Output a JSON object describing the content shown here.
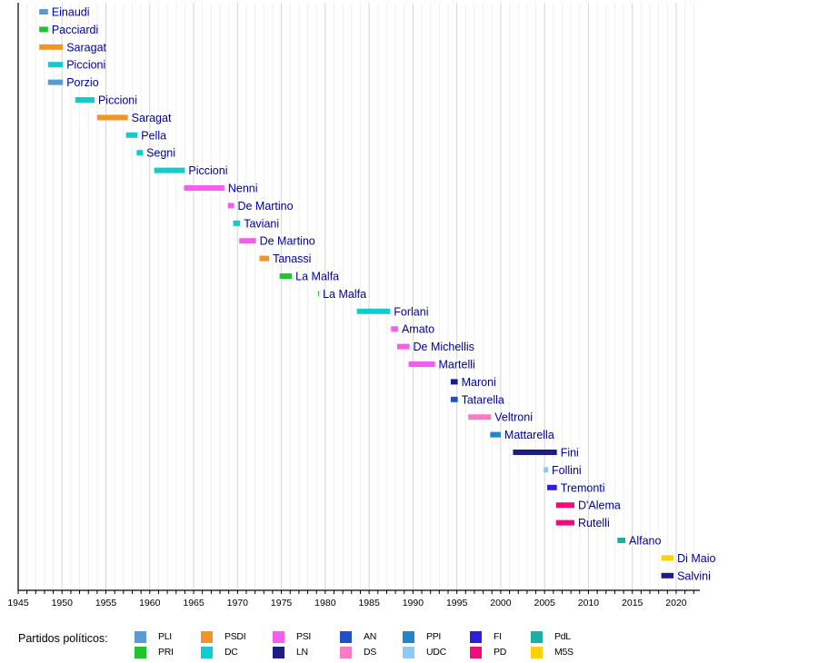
{
  "chart_data": {
    "type": "timeline-bar",
    "title": "",
    "xlabel": "",
    "ylabel": "",
    "xlim": [
      1945,
      2022.7
    ],
    "x_ticks": [
      1945,
      1950,
      1955,
      1960,
      1965,
      1970,
      1975,
      1980,
      1985,
      1990,
      1995,
      2000,
      2005,
      2010,
      2015,
      2020
    ],
    "grid": "vertical, major every 5 years, minor every year",
    "legend_title": "Partidos políticos:",
    "legend_position": "bottom",
    "parties": [
      {
        "key": "PLI",
        "color": "#5a9bd3"
      },
      {
        "key": "PRI",
        "color": "#22c42e"
      },
      {
        "key": "PSDI",
        "color": "#f19624"
      },
      {
        "key": "DC",
        "color": "#10cccc"
      },
      {
        "key": "PSI",
        "color": "#f65cf0"
      },
      {
        "key": "LN",
        "color": "#1c1c86"
      },
      {
        "key": "AN",
        "color": "#2050c4"
      },
      {
        "key": "DS",
        "color": "#f77cc2"
      },
      {
        "key": "PPI",
        "color": "#1f86cc"
      },
      {
        "key": "UDC",
        "color": "#8ecaf4"
      },
      {
        "key": "FI",
        "color": "#2e1fdc"
      },
      {
        "key": "PD",
        "color": "#f20c78"
      },
      {
        "key": "PdL",
        "color": "#1cb0a4"
      },
      {
        "key": "M5S",
        "color": "#f9d20c"
      }
    ],
    "entries": [
      {
        "name": "Einaudi",
        "party": "PLI",
        "start": 1947.4,
        "end": 1948.4
      },
      {
        "name": "Pacciardi",
        "party": "PRI",
        "start": 1947.4,
        "end": 1948.4
      },
      {
        "name": "Saragat",
        "party": "PSDI",
        "start": 1947.4,
        "end": 1950.1
      },
      {
        "name": "Piccioni",
        "party": "DC",
        "start": 1948.4,
        "end": 1950.1
      },
      {
        "name": "Porzio",
        "party": "PLI",
        "start": 1948.4,
        "end": 1950.1
      },
      {
        "name": "Piccioni",
        "party": "DC",
        "start": 1951.5,
        "end": 1953.7
      },
      {
        "name": "Saragat",
        "party": "PSDI",
        "start": 1954.0,
        "end": 1957.5
      },
      {
        "name": "Pella",
        "party": "DC",
        "start": 1957.3,
        "end": 1958.6
      },
      {
        "name": "Segni",
        "party": "DC",
        "start": 1958.5,
        "end": 1959.2
      },
      {
        "name": "Piccioni",
        "party": "DC",
        "start": 1960.5,
        "end": 1964.0
      },
      {
        "name": "Nenni",
        "party": "PSI",
        "start": 1963.9,
        "end": 1968.5
      },
      {
        "name": "De Martino",
        "party": "PSI",
        "start": 1968.9,
        "end": 1969.6
      },
      {
        "name": "Taviani",
        "party": "DC",
        "start": 1969.5,
        "end": 1970.3
      },
      {
        "name": "De Martino",
        "party": "PSI",
        "start": 1970.2,
        "end": 1972.1
      },
      {
        "name": "Tanassi",
        "party": "PSDI",
        "start": 1972.5,
        "end": 1973.6
      },
      {
        "name": "La Malfa",
        "party": "PRI",
        "start": 1974.8,
        "end": 1976.2
      },
      {
        "name": "La Malfa",
        "party": "PRI",
        "start": 1979.2,
        "end": 1979.3
      },
      {
        "name": "Forlani",
        "party": "DC",
        "start": 1983.6,
        "end": 1987.4
      },
      {
        "name": "Amato",
        "party": "PSI",
        "start": 1987.5,
        "end": 1988.3
      },
      {
        "name": "De Michellis",
        "party": "PSI",
        "start": 1988.2,
        "end": 1989.6
      },
      {
        "name": "Martelli",
        "party": "PSI",
        "start": 1989.5,
        "end": 1992.5
      },
      {
        "name": "Maroni",
        "party": "LN",
        "start": 1994.3,
        "end": 1995.1
      },
      {
        "name": "Tatarella",
        "party": "AN",
        "start": 1994.3,
        "end": 1995.1
      },
      {
        "name": "Veltroni",
        "party": "DS",
        "start": 1996.3,
        "end": 1998.9
      },
      {
        "name": "Mattarella",
        "party": "PPI",
        "start": 1998.8,
        "end": 2000.0
      },
      {
        "name": "Fini",
        "party": "LN",
        "start": 2001.4,
        "end": 2006.4
      },
      {
        "name": "Follini",
        "party": "UDC",
        "start": 2004.9,
        "end": 2005.4
      },
      {
        "name": "Tremonti",
        "party": "FI",
        "start": 2005.3,
        "end": 2006.4
      },
      {
        "name": "D'Alema",
        "party": "PD",
        "start": 2006.3,
        "end": 2008.4
      },
      {
        "name": "Rutelli",
        "party": "PD",
        "start": 2006.3,
        "end": 2008.4
      },
      {
        "name": "Alfano",
        "party": "PdL",
        "start": 2013.3,
        "end": 2014.2
      },
      {
        "name": "Di Maio",
        "party": "M5S",
        "start": 2018.3,
        "end": 2019.7
      },
      {
        "name": "Salvini",
        "party": "LN",
        "start": 2018.3,
        "end": 2019.7
      }
    ]
  }
}
